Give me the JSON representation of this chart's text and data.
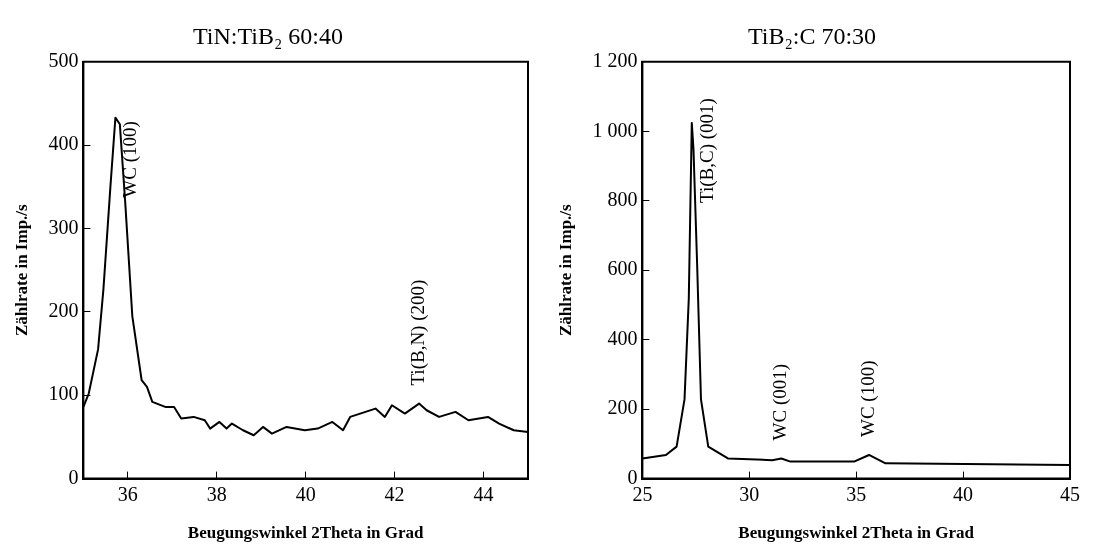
{
  "chart_data": [
    {
      "type": "line",
      "title": "TiN:TiB₂ 60:40",
      "xlabel": "Beugungswinkel 2Theta in Grad",
      "ylabel": "Zählrate in Imp./s",
      "xlim": [
        35,
        45
      ],
      "xticks": [
        36,
        38,
        40,
        42,
        44
      ],
      "ylim": [
        0,
        500
      ],
      "yticks": [
        0,
        100,
        200,
        300,
        400,
        500
      ],
      "grid": false,
      "legend": false,
      "marker": "none",
      "line_style": "solid",
      "series": [
        {
          "color": "#000000",
          "x": [
            35.0,
            35.12,
            35.33,
            35.45,
            35.61,
            35.72,
            35.82,
            35.94,
            36.1,
            36.31,
            36.43,
            36.55,
            36.84,
            37.04,
            37.2,
            37.48,
            37.73,
            37.85,
            38.06,
            38.22,
            38.34,
            38.59,
            38.83,
            39.04,
            39.24,
            39.57,
            39.98,
            40.27,
            40.6,
            40.84,
            41.0,
            41.57,
            41.78,
            41.94,
            42.23,
            42.55,
            42.72,
            43.0,
            43.37,
            43.66,
            44.1,
            44.35,
            44.68,
            45.0
          ],
          "values": [
            86,
            102,
            155,
            227,
            352,
            433,
            425,
            332,
            195,
            118,
            110,
            92,
            86,
            86,
            72,
            74,
            70,
            60,
            68,
            60,
            66,
            58,
            52,
            62,
            54,
            62,
            58,
            60,
            68,
            58,
            74,
            84,
            74,
            88,
            78,
            90,
            82,
            74,
            80,
            70,
            74,
            66,
            58,
            56
          ]
        }
      ],
      "annotations": [
        {
          "text": "WC (100)",
          "x": 35.72,
          "y": 433
        },
        {
          "text": "Ti(B,N) (200)",
          "x": 42.55,
          "y": 90
        }
      ]
    },
    {
      "type": "line",
      "title": "TiB₂:C 70:30",
      "xlabel": "Beugungswinkel 2Theta in Grad",
      "ylabel": "Zählrate in Imp./s",
      "xlim": [
        25,
        45
      ],
      "xticks": [
        25,
        30,
        35,
        40,
        45
      ],
      "ylim": [
        0,
        1200
      ],
      "yticks": [
        0,
        200,
        400,
        600,
        800,
        {
          "value": 1000,
          "label": "1 000"
        },
        {
          "value": 1200,
          "label": "1 200"
        }
      ],
      "grid": false,
      "legend": false,
      "marker": "none",
      "line_style": "solid",
      "series": [
        {
          "color": "#000000",
          "x": [
            25,
            26.1,
            26.6,
            26.97,
            27.17,
            27.31,
            27.39,
            27.56,
            27.74,
            28.08,
            29.0,
            31.07,
            31.5,
            31.92,
            34.9,
            35.6,
            36.37,
            45
          ],
          "values": [
            58,
            68,
            92,
            228,
            519,
            1024,
            947,
            617,
            228,
            92,
            58,
            53,
            58,
            49,
            49,
            68,
            44,
            39
          ]
        }
      ],
      "annotations": [
        {
          "text": "Ti(B,C) (001)",
          "x": 27.31,
          "y": 1024
        },
        {
          "text": "WC (001)",
          "x": 31.5,
          "y": 58
        },
        {
          "text": "WC (100)",
          "x": 35.6,
          "y": 68
        }
      ]
    }
  ]
}
